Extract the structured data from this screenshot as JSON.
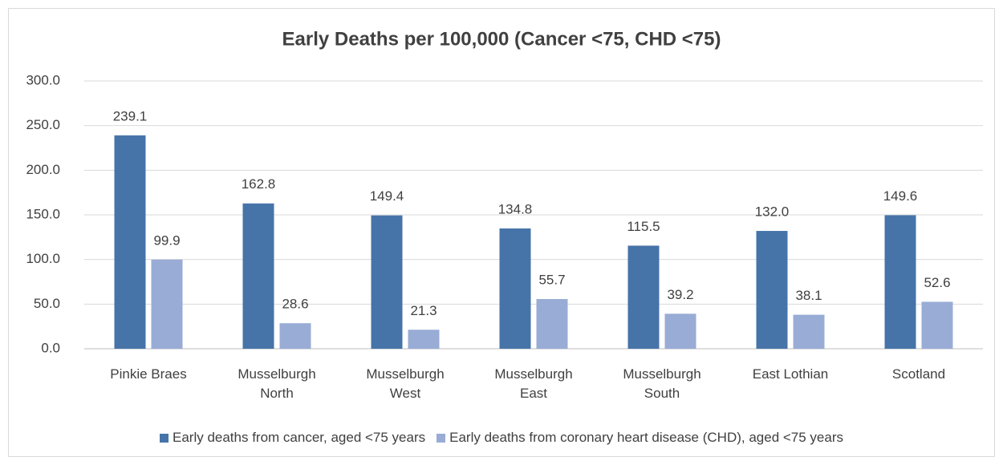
{
  "chart_data": {
    "type": "bar",
    "title": "Early Deaths per 100,000 (Cancer <75, CHD <75)",
    "categories": [
      "Pinkie Braes",
      "Musselburgh North",
      "Musselburgh West",
      "Musselburgh East",
      "Musselburgh South",
      "East Lothian",
      "Scotland"
    ],
    "series": [
      {
        "name": "Early deaths from cancer, aged <75 years",
        "color": "#4674a9",
        "values": [
          239.1,
          162.8,
          149.4,
          134.8,
          115.5,
          132.0,
          149.6
        ],
        "value_labels": [
          "239.1",
          "162.8",
          "149.4",
          "134.8",
          "115.5",
          "132.0",
          "149.6"
        ]
      },
      {
        "name": "Early deaths from coronary heart disease (CHD), aged <75 years",
        "color": "#98acd5",
        "values": [
          99.9,
          28.6,
          21.3,
          55.7,
          39.2,
          38.1,
          52.6
        ]
      }
    ],
    "ylim": [
      0,
      300
    ],
    "yticks": [
      {
        "value": 0,
        "label": "0.0"
      },
      {
        "value": 50,
        "label": "50.0"
      },
      {
        "value": 100,
        "label": "100.0"
      },
      {
        "value": 150,
        "label": "150.0"
      },
      {
        "value": 200,
        "label": "200.0"
      },
      {
        "value": 250,
        "label": "250.0"
      },
      {
        "value": 300,
        "label": "300.0"
      }
    ],
    "grid": true,
    "legend": "bottom"
  }
}
